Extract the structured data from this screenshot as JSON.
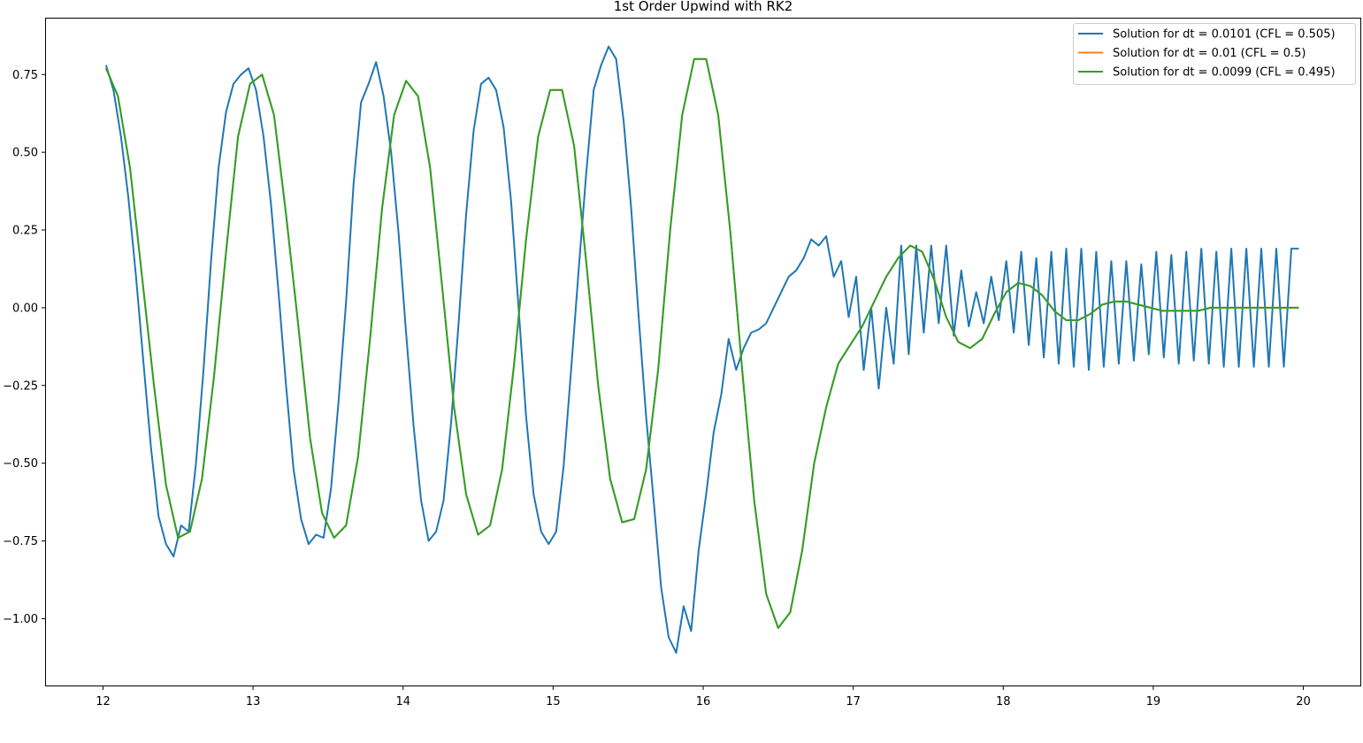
{
  "chart_data": {
    "type": "line",
    "title": "1st Order Upwind with RK2",
    "xlabel": "",
    "ylabel": "",
    "xlim": [
      11.62,
      20.38
    ],
    "ylim": [
      -1.215,
      0.93
    ],
    "x_ticks": [
      12,
      13,
      14,
      15,
      16,
      17,
      18,
      19,
      20
    ],
    "y_ticks": [
      0.75,
      0.5,
      0.25,
      0.0,
      -0.25,
      -0.5,
      -0.75,
      -1.0
    ],
    "grid": false,
    "legend_position": "top-right",
    "series": [
      {
        "name": "Solution for dt = 0.0101 (CFL = 0.505)",
        "color": "#1f77b4",
        "x": [
          12.02,
          12.07,
          12.12,
          12.17,
          12.22,
          12.27,
          12.32,
          12.37,
          12.42,
          12.47,
          12.52,
          12.57,
          12.62,
          12.67,
          12.72,
          12.77,
          12.82,
          12.87,
          12.92,
          12.97,
          13.02,
          13.07,
          13.12,
          13.17,
          13.22,
          13.27,
          13.32,
          13.37,
          13.42,
          13.47,
          13.52,
          13.57,
          13.62,
          13.67,
          13.72,
          13.77,
          13.82,
          13.87,
          13.92,
          13.97,
          14.02,
          14.07,
          14.12,
          14.17,
          14.22,
          14.27,
          14.32,
          14.37,
          14.42,
          14.47,
          14.52,
          14.57,
          14.62,
          14.67,
          14.72,
          14.77,
          14.82,
          14.87,
          14.92,
          14.97,
          15.02,
          15.07,
          15.12,
          15.17,
          15.22,
          15.27,
          15.32,
          15.37,
          15.42,
          15.47,
          15.52,
          15.57,
          15.62,
          15.67,
          15.72,
          15.77,
          15.82,
          15.87,
          15.92,
          15.97,
          16.02,
          16.07,
          16.12,
          16.17,
          16.22,
          16.27,
          16.32,
          16.37,
          16.42,
          16.47,
          16.52,
          16.57,
          16.62,
          16.67,
          16.72,
          16.77,
          16.82,
          16.87,
          16.92,
          16.97,
          17.02,
          17.07,
          17.12,
          17.17,
          17.22,
          17.27,
          17.32,
          17.37,
          17.42,
          17.47,
          17.52,
          17.57,
          17.62,
          17.67,
          17.72,
          17.77,
          17.82,
          17.87,
          17.92,
          17.97,
          18.02,
          18.07,
          18.12,
          18.17,
          18.22,
          18.27,
          18.32,
          18.37,
          18.42,
          18.47,
          18.52,
          18.57,
          18.62,
          18.67,
          18.72,
          18.77,
          18.82,
          18.87,
          18.92,
          18.97,
          19.02,
          19.07,
          19.12,
          19.17,
          19.22,
          19.27,
          19.32,
          19.37,
          19.42,
          19.47,
          19.52,
          19.57,
          19.62,
          19.67,
          19.72,
          19.77,
          19.82,
          19.87,
          19.92,
          19.97
        ],
        "y": [
          0.78,
          0.7,
          0.55,
          0.35,
          0.1,
          -0.18,
          -0.45,
          -0.67,
          -0.76,
          -0.8,
          -0.7,
          -0.72,
          -0.5,
          -0.2,
          0.15,
          0.45,
          0.63,
          0.72,
          0.75,
          0.77,
          0.7,
          0.55,
          0.33,
          0.05,
          -0.25,
          -0.52,
          -0.68,
          -0.76,
          -0.73,
          -0.74,
          -0.58,
          -0.3,
          0.02,
          0.4,
          0.66,
          0.72,
          0.79,
          0.68,
          0.5,
          0.24,
          -0.08,
          -0.38,
          -0.62,
          -0.75,
          -0.72,
          -0.62,
          -0.37,
          -0.05,
          0.3,
          0.57,
          0.72,
          0.74,
          0.7,
          0.58,
          0.34,
          0.0,
          -0.35,
          -0.6,
          -0.72,
          -0.76,
          -0.72,
          -0.51,
          -0.2,
          0.12,
          0.43,
          0.7,
          0.78,
          0.84,
          0.8,
          0.6,
          0.32,
          -0.03,
          -0.35,
          -0.62,
          -0.9,
          -1.06,
          -1.11,
          -0.96,
          -1.04,
          -0.78,
          -0.6,
          -0.4,
          -0.28,
          -0.1,
          -0.2,
          -0.13,
          -0.08,
          -0.07,
          -0.05,
          0.0,
          0.05,
          0.1,
          0.12,
          0.16,
          0.22,
          0.2,
          0.23,
          0.1,
          0.15,
          -0.03,
          0.1,
          -0.2,
          0.0,
          -0.26,
          0.0,
          -0.18,
          0.2,
          -0.15,
          0.2,
          -0.08,
          0.2,
          -0.05,
          0.2,
          -0.09,
          0.12,
          -0.06,
          0.05,
          -0.05,
          0.1,
          -0.04,
          0.15,
          -0.08,
          0.18,
          -0.12,
          0.16,
          -0.16,
          0.18,
          -0.18,
          0.19,
          -0.19,
          0.19,
          -0.2,
          0.18,
          -0.19,
          0.15,
          -0.18,
          0.15,
          -0.17,
          0.14,
          -0.15,
          0.18,
          -0.16,
          0.17,
          -0.18,
          0.18,
          -0.17,
          0.19,
          -0.18,
          0.18,
          -0.19,
          0.19,
          -0.19,
          0.19,
          -0.19,
          0.19,
          -0.19,
          0.19,
          -0.19,
          0.19,
          0.19
        ]
      },
      {
        "name": "Solution for dt = 0.01 (CFL = 0.5)",
        "color": "#ff7f0e",
        "x": [
          12.02,
          12.1,
          12.18,
          12.26,
          12.34,
          12.42,
          12.5,
          12.58,
          12.66,
          12.74,
          12.82,
          12.9,
          12.98,
          13.06,
          13.14,
          13.22,
          13.3,
          13.38,
          13.46,
          13.54,
          13.62,
          13.7,
          13.78,
          13.86,
          13.94,
          14.02,
          14.1,
          14.18,
          14.26,
          14.34,
          14.42,
          14.5,
          14.58,
          14.66,
          14.74,
          14.82,
          14.9,
          14.98,
          15.06,
          15.14,
          15.22,
          15.3,
          15.38,
          15.46,
          15.54,
          15.62,
          15.7,
          15.78,
          15.86,
          15.94,
          16.02,
          16.1,
          16.18,
          16.26,
          16.34,
          16.42,
          16.5,
          16.58,
          16.66,
          16.74,
          16.82,
          16.9,
          16.98,
          17.06,
          17.14,
          17.22,
          17.3,
          17.38,
          17.46,
          17.54,
          17.62,
          17.7,
          17.78,
          17.86,
          17.94,
          18.02,
          18.1,
          18.18,
          18.26,
          18.34,
          18.42,
          18.5,
          18.58,
          18.66,
          18.74,
          18.82,
          18.9,
          18.98,
          19.06,
          19.14,
          19.22,
          19.3,
          19.38,
          19.46,
          19.54,
          19.62,
          19.7,
          19.78,
          19.86,
          19.94,
          19.97
        ],
        "y": [
          0.77,
          0.68,
          0.45,
          0.1,
          -0.25,
          -0.57,
          -0.74,
          -0.72,
          -0.55,
          -0.22,
          0.18,
          0.55,
          0.72,
          0.75,
          0.62,
          0.3,
          -0.05,
          -0.42,
          -0.66,
          -0.74,
          -0.7,
          -0.48,
          -0.1,
          0.32,
          0.62,
          0.73,
          0.68,
          0.45,
          0.07,
          -0.32,
          -0.6,
          -0.73,
          -0.7,
          -0.52,
          -0.18,
          0.22,
          0.55,
          0.7,
          0.7,
          0.52,
          0.15,
          -0.25,
          -0.55,
          -0.69,
          -0.68,
          -0.52,
          -0.2,
          0.25,
          0.62,
          0.8,
          0.8,
          0.62,
          0.25,
          -0.2,
          -0.62,
          -0.92,
          -1.03,
          -0.98,
          -0.78,
          -0.5,
          -0.32,
          -0.18,
          -0.12,
          -0.06,
          0.02,
          0.1,
          0.16,
          0.2,
          0.18,
          0.09,
          -0.03,
          -0.11,
          -0.13,
          -0.1,
          -0.02,
          0.05,
          0.08,
          0.07,
          0.04,
          -0.01,
          -0.04,
          -0.04,
          -0.02,
          0.01,
          0.02,
          0.02,
          0.01,
          0.0,
          -0.01,
          -0.01,
          -0.01,
          -0.01,
          0.0,
          0.0,
          0.0,
          0.0,
          0.0,
          0.0,
          0.0,
          0.0,
          0.0
        ]
      },
      {
        "name": "Solution for dt = 0.0099 (CFL = 0.495)",
        "color": "#2ca02c",
        "x": [
          12.02,
          12.1,
          12.18,
          12.26,
          12.34,
          12.42,
          12.5,
          12.58,
          12.66,
          12.74,
          12.82,
          12.9,
          12.98,
          13.06,
          13.14,
          13.22,
          13.3,
          13.38,
          13.46,
          13.54,
          13.62,
          13.7,
          13.78,
          13.86,
          13.94,
          14.02,
          14.1,
          14.18,
          14.26,
          14.34,
          14.42,
          14.5,
          14.58,
          14.66,
          14.74,
          14.82,
          14.9,
          14.98,
          15.06,
          15.14,
          15.22,
          15.3,
          15.38,
          15.46,
          15.54,
          15.62,
          15.7,
          15.78,
          15.86,
          15.94,
          16.02,
          16.1,
          16.18,
          16.26,
          16.34,
          16.42,
          16.5,
          16.58,
          16.66,
          16.74,
          16.82,
          16.9,
          16.98,
          17.06,
          17.14,
          17.22,
          17.3,
          17.38,
          17.46,
          17.54,
          17.62,
          17.7,
          17.78,
          17.86,
          17.94,
          18.02,
          18.1,
          18.18,
          18.26,
          18.34,
          18.42,
          18.5,
          18.58,
          18.66,
          18.74,
          18.82,
          18.9,
          18.98,
          19.06,
          19.14,
          19.22,
          19.3,
          19.38,
          19.46,
          19.54,
          19.62,
          19.7,
          19.78,
          19.86,
          19.94,
          19.97
        ],
        "y": [
          0.77,
          0.68,
          0.45,
          0.1,
          -0.25,
          -0.57,
          -0.74,
          -0.72,
          -0.55,
          -0.22,
          0.18,
          0.55,
          0.72,
          0.75,
          0.62,
          0.3,
          -0.05,
          -0.42,
          -0.66,
          -0.74,
          -0.7,
          -0.48,
          -0.1,
          0.32,
          0.62,
          0.73,
          0.68,
          0.45,
          0.07,
          -0.32,
          -0.6,
          -0.73,
          -0.7,
          -0.52,
          -0.18,
          0.22,
          0.55,
          0.7,
          0.7,
          0.52,
          0.15,
          -0.25,
          -0.55,
          -0.69,
          -0.68,
          -0.52,
          -0.2,
          0.25,
          0.62,
          0.8,
          0.8,
          0.62,
          0.25,
          -0.2,
          -0.62,
          -0.92,
          -1.03,
          -0.98,
          -0.78,
          -0.5,
          -0.32,
          -0.18,
          -0.12,
          -0.06,
          0.02,
          0.1,
          0.16,
          0.2,
          0.18,
          0.09,
          -0.03,
          -0.11,
          -0.13,
          -0.1,
          -0.02,
          0.05,
          0.08,
          0.07,
          0.04,
          -0.01,
          -0.04,
          -0.04,
          -0.02,
          0.01,
          0.02,
          0.02,
          0.01,
          0.0,
          -0.01,
          -0.01,
          -0.01,
          -0.01,
          0.0,
          0.0,
          0.0,
          0.0,
          0.0,
          0.0,
          0.0,
          0.0,
          0.0
        ]
      }
    ]
  }
}
